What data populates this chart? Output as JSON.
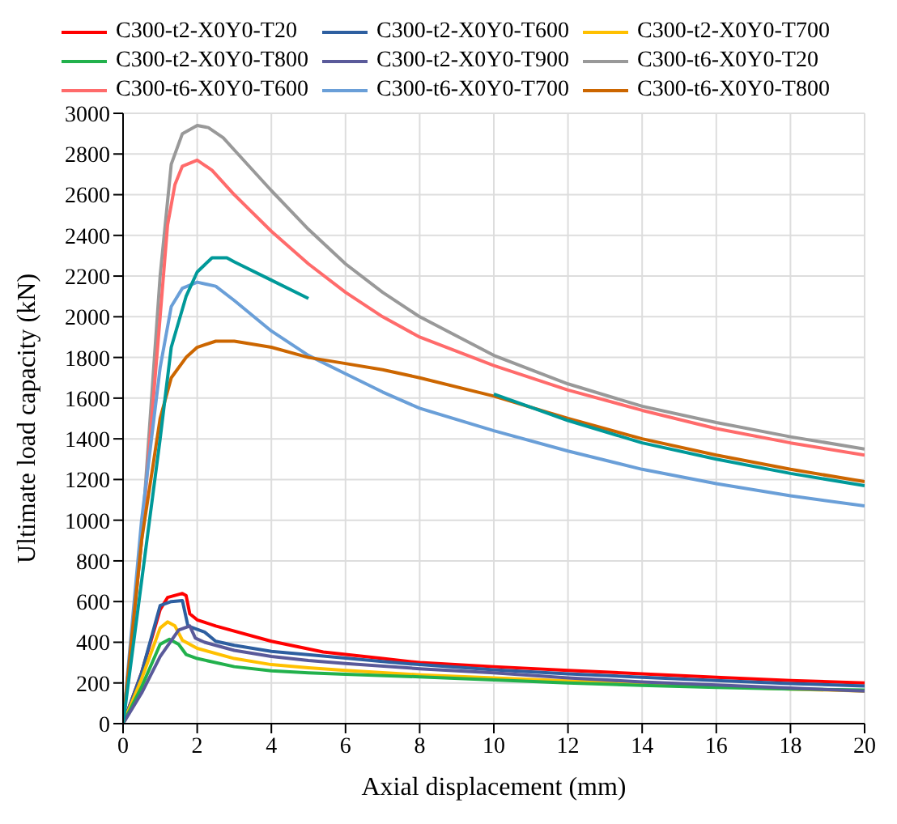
{
  "chart_data": {
    "type": "line",
    "xlabel": "Axial displacement (mm)",
    "ylabel": "Ultimate load capacity (kN)",
    "xlim": [
      0,
      20
    ],
    "xticks": [
      0,
      2,
      4,
      6,
      8,
      10,
      12,
      14,
      16,
      18,
      20
    ],
    "ylim": [
      0,
      3000
    ],
    "yticks": [
      0,
      200,
      400,
      600,
      800,
      1000,
      1200,
      1400,
      1600,
      1800,
      2000,
      2200,
      2400,
      2600,
      2800,
      3000
    ],
    "grid": true,
    "legend": "top",
    "marker": "none",
    "line_style": "solid",
    "series": [
      {
        "name": "C300-t2-X0Y0-T20",
        "color": "#ff0000",
        "x": [
          0,
          0.5,
          1,
          1.2,
          1.6,
          1.7,
          1.8,
          2,
          2.5,
          4,
          5.4,
          7,
          8,
          10,
          12,
          14,
          16,
          18,
          20
        ],
        "values": [
          0,
          250,
          560,
          620,
          640,
          630,
          540,
          510,
          480,
          405,
          352,
          320,
          300,
          280,
          262,
          245,
          228,
          212,
          200
        ]
      },
      {
        "name": "C300-t2-X0Y0-T600",
        "color": "#2e5fa0",
        "x": [
          0,
          0.5,
          1,
          1.3,
          1.6,
          1.75,
          2.2,
          2.5,
          3,
          4,
          5.4,
          7,
          8,
          10,
          12,
          14,
          16,
          18,
          20
        ],
        "values": [
          0,
          250,
          580,
          600,
          605,
          480,
          450,
          405,
          385,
          355,
          332,
          305,
          290,
          265,
          245,
          228,
          212,
          197,
          185
        ]
      },
      {
        "name": "C300-t2-X0Y0-T700",
        "color": "#ffc000",
        "x": [
          0,
          0.5,
          1,
          1.2,
          1.4,
          1.6,
          2,
          3,
          4,
          5,
          6,
          8,
          10,
          12,
          14,
          16,
          18,
          20
        ],
        "values": [
          0,
          220,
          470,
          500,
          480,
          410,
          370,
          320,
          290,
          275,
          262,
          240,
          225,
          210,
          195,
          182,
          170,
          160
        ]
      },
      {
        "name": "C300-t2-X0Y0-T800",
        "color": "#22b14c",
        "x": [
          0,
          0.5,
          1,
          1.25,
          1.5,
          1.7,
          2,
          3,
          4,
          5,
          6,
          8,
          10,
          12,
          14,
          16,
          18,
          20
        ],
        "values": [
          0,
          180,
          390,
          415,
          390,
          340,
          320,
          280,
          260,
          250,
          243,
          230,
          215,
          200,
          188,
          178,
          170,
          165
        ]
      },
      {
        "name": "C300-t2-X0Y0-T900",
        "color": "#5a5a9a",
        "x": [
          0,
          0.5,
          1,
          1.5,
          1.8,
          1.95,
          2.2,
          3,
          4,
          5,
          6,
          8,
          10,
          12,
          14,
          16,
          18,
          20
        ],
        "values": [
          0,
          150,
          330,
          460,
          480,
          420,
          400,
          360,
          330,
          310,
          295,
          270,
          250,
          225,
          205,
          190,
          175,
          160
        ]
      },
      {
        "name": "C300-t6-X0Y0-T20",
        "color": "#999999",
        "x": [
          0,
          0.5,
          1,
          1.3,
          1.6,
          2,
          2.3,
          2.7,
          3,
          4,
          5,
          6,
          7,
          8,
          10,
          12,
          14,
          16,
          18,
          20
        ],
        "values": [
          0,
          900,
          2200,
          2750,
          2900,
          2940,
          2930,
          2880,
          2820,
          2620,
          2430,
          2260,
          2120,
          2000,
          1810,
          1670,
          1560,
          1480,
          1410,
          1350
        ]
      },
      {
        "name": "C300-t6-X0Y0-T600",
        "color": "#ff6b6b",
        "x": [
          0,
          0.5,
          1,
          1.2,
          1.4,
          1.6,
          2,
          2.4,
          3,
          4,
          5,
          6,
          7,
          8,
          10,
          12,
          14,
          16,
          18,
          20
        ],
        "values": [
          0,
          900,
          2000,
          2450,
          2650,
          2740,
          2770,
          2720,
          2600,
          2420,
          2260,
          2120,
          2000,
          1900,
          1760,
          1640,
          1540,
          1450,
          1380,
          1320
        ]
      },
      {
        "name": "C300-t6-X0Y0-T700",
        "color": "#6a9fd8",
        "x": [
          0,
          0.5,
          1,
          1.3,
          1.6,
          2,
          2.5,
          3,
          4,
          5,
          6,
          7,
          8,
          10,
          12,
          14,
          16,
          18,
          20
        ],
        "values": [
          0,
          1000,
          1750,
          2050,
          2140,
          2170,
          2150,
          2080,
          1930,
          1810,
          1720,
          1630,
          1550,
          1440,
          1340,
          1250,
          1180,
          1120,
          1070
        ]
      },
      {
        "name": "C300-t6-X0Y0-T800",
        "color": "#cc6600",
        "x": [
          0,
          0.5,
          1,
          1.3,
          1.7,
          2,
          2.5,
          3,
          4,
          5,
          6,
          7,
          8,
          10,
          12,
          14,
          16,
          18,
          20
        ],
        "values": [
          0,
          900,
          1500,
          1700,
          1800,
          1850,
          1880,
          1880,
          1850,
          1800,
          1770,
          1740,
          1700,
          1610,
          1500,
          1400,
          1320,
          1250,
          1190
        ]
      },
      {
        "color": "#009999",
        "x": [
          0,
          0.5,
          1,
          1.3,
          1.7,
          2,
          2.4,
          2.8,
          3,
          4,
          5,
          7.5,
          10,
          12,
          14,
          16,
          18,
          20
        ],
        "values": [
          0,
          700,
          1400,
          1850,
          2100,
          2220,
          2290,
          2290,
          2270,
          2180,
          2090,
          null,
          1620,
          1490,
          1380,
          1300,
          1230,
          1170
        ]
      }
    ]
  }
}
